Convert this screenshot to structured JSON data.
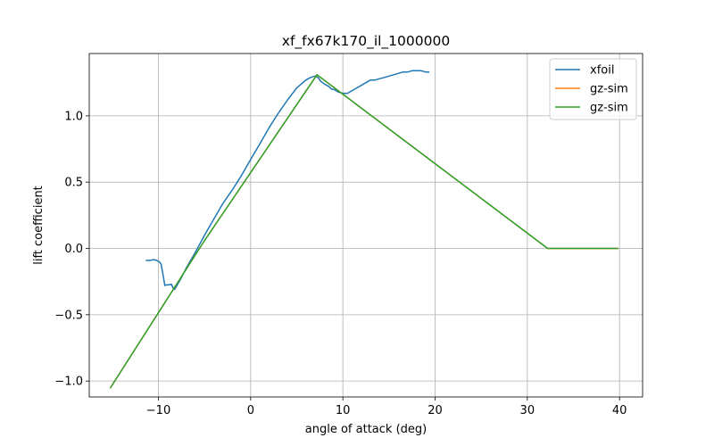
{
  "chart_data": {
    "type": "line",
    "title": "xf_fx67k170_il_1000000",
    "xlabel": "angle of attack (deg)",
    "ylabel": "lift coefficient",
    "xlim": [
      -17.5,
      42.5
    ],
    "ylim": [
      -1.12,
      1.47
    ],
    "xticks": [
      -10,
      0,
      10,
      20,
      30,
      40
    ],
    "yticks": [
      -1.0,
      -0.5,
      0.0,
      0.5,
      1.0
    ],
    "xtick_labels": [
      "−10",
      "0",
      "10",
      "20",
      "30",
      "40"
    ],
    "ytick_labels": [
      "−1.0",
      "−0.5",
      "0.0",
      "0.5",
      "1.0"
    ],
    "grid": true,
    "legend_position": "top-right",
    "series": [
      {
        "name": "xfoil",
        "color": "#1f77b4",
        "x": [
          -11.3,
          -10.9,
          -10.5,
          -10.2,
          -9.9,
          -9.7,
          -9.5,
          -9.3,
          -9.15,
          -8.9,
          -8.6,
          -8.4,
          -8.25,
          -8.0,
          -7.5,
          -7.0,
          -6.0,
          -5.0,
          -4.0,
          -3.0,
          -2.0,
          -1.0,
          0.0,
          1.0,
          2.0,
          3.0,
          4.0,
          5.0,
          6.0,
          6.5,
          7.0,
          7.3,
          7.6,
          8.0,
          8.5,
          8.8,
          9.0,
          9.5,
          10.0,
          10.5,
          11.0,
          11.5,
          12.0,
          12.5,
          13.0,
          13.5,
          14.0,
          14.5,
          15.0,
          15.5,
          16.0,
          16.5,
          17.0,
          17.5,
          18.0,
          18.5,
          19.0,
          19.3
        ],
        "y": [
          -0.09,
          -0.09,
          -0.085,
          -0.09,
          -0.1,
          -0.12,
          -0.2,
          -0.28,
          -0.275,
          -0.275,
          -0.27,
          -0.3,
          -0.31,
          -0.28,
          -0.22,
          -0.15,
          -0.03,
          0.1,
          0.22,
          0.34,
          0.44,
          0.55,
          0.67,
          0.79,
          0.91,
          1.02,
          1.12,
          1.21,
          1.27,
          1.29,
          1.3,
          1.29,
          1.26,
          1.24,
          1.22,
          1.2,
          1.2,
          1.18,
          1.17,
          1.17,
          1.19,
          1.21,
          1.23,
          1.25,
          1.27,
          1.27,
          1.28,
          1.29,
          1.3,
          1.31,
          1.32,
          1.33,
          1.33,
          1.34,
          1.34,
          1.34,
          1.33,
          1.33
        ]
      },
      {
        "name": "gz-sim",
        "color": "#ff7f0e",
        "x": [
          -15.2,
          -5.0,
          7.2,
          32.2,
          39.8
        ],
        "y": [
          -1.05,
          0.06,
          1.31,
          0.0,
          0.0
        ]
      },
      {
        "name": "gz-sim",
        "color": "#2ca02c",
        "x": [
          -15.2,
          -5.0,
          7.2,
          32.2,
          39.8
        ],
        "y": [
          -1.05,
          0.06,
          1.31,
          0.0,
          0.0
        ]
      }
    ]
  }
}
